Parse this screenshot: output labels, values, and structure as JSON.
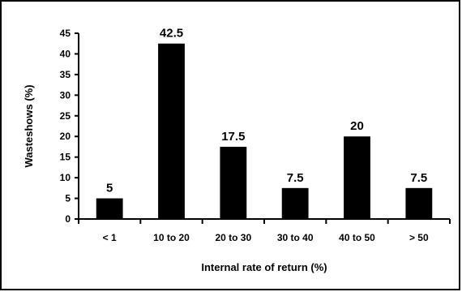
{
  "chart_data": {
    "type": "bar",
    "categories": [
      "< 1",
      "10 to 20",
      "20 to 30",
      "30 to 40",
      "40 to 50",
      "> 50"
    ],
    "values": [
      5,
      42.5,
      17.5,
      7.5,
      20,
      7.5
    ],
    "value_labels": [
      "5",
      "42.5",
      "17.5",
      "7.5",
      "20",
      "7.5"
    ],
    "xlabel": "Internal rate of return (%)",
    "ylabel": "Wasteshows (%)",
    "ylim": [
      0,
      45
    ],
    "yticks": [
      0,
      5,
      10,
      15,
      20,
      25,
      30,
      35,
      40,
      45
    ],
    "bar_color": "#000000",
    "grid": false,
    "legend": "none"
  }
}
